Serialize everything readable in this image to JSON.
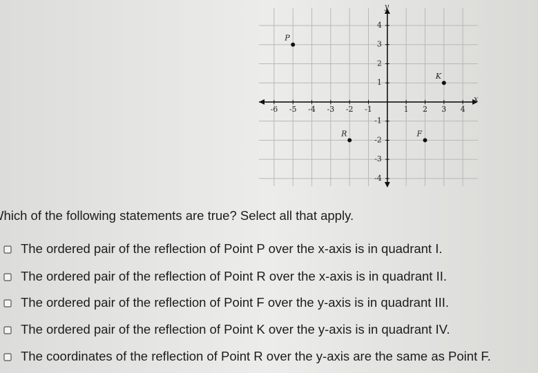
{
  "chart_data": {
    "type": "scatter",
    "x_label": "x",
    "y_label": "y",
    "xlim": [
      -6.8,
      4.8
    ],
    "ylim": [
      -4.4,
      4.9
    ],
    "xticks": [
      -6,
      -5,
      -4,
      -3,
      -2,
      -1,
      1,
      2,
      3,
      4
    ],
    "yticks": [
      -4,
      -3,
      -2,
      -1,
      1,
      2,
      3,
      4
    ],
    "grid": true,
    "color": "#111111",
    "points": [
      {
        "label": "P",
        "x": -5,
        "y": 3
      },
      {
        "label": "K",
        "x": 3,
        "y": 1
      },
      {
        "label": "R",
        "x": -2,
        "y": -2
      },
      {
        "label": "F",
        "x": 2,
        "y": -2
      }
    ]
  },
  "question": "Which of the following statements are true? Select all that apply.",
  "options": [
    "The ordered pair of the reflection of Point P over the x-axis is in quadrant I.",
    "The ordered pair of the reflection of Point R over the x-axis is in quadrant II.",
    "The ordered pair of the reflection of Point F over the y-axis is in quadrant III.",
    "The ordered pair of the reflection of Point K over the y-axis is in quadrant IV.",
    "The coordinates of the reflection of Point R over the y-axis are the same as Point F."
  ]
}
